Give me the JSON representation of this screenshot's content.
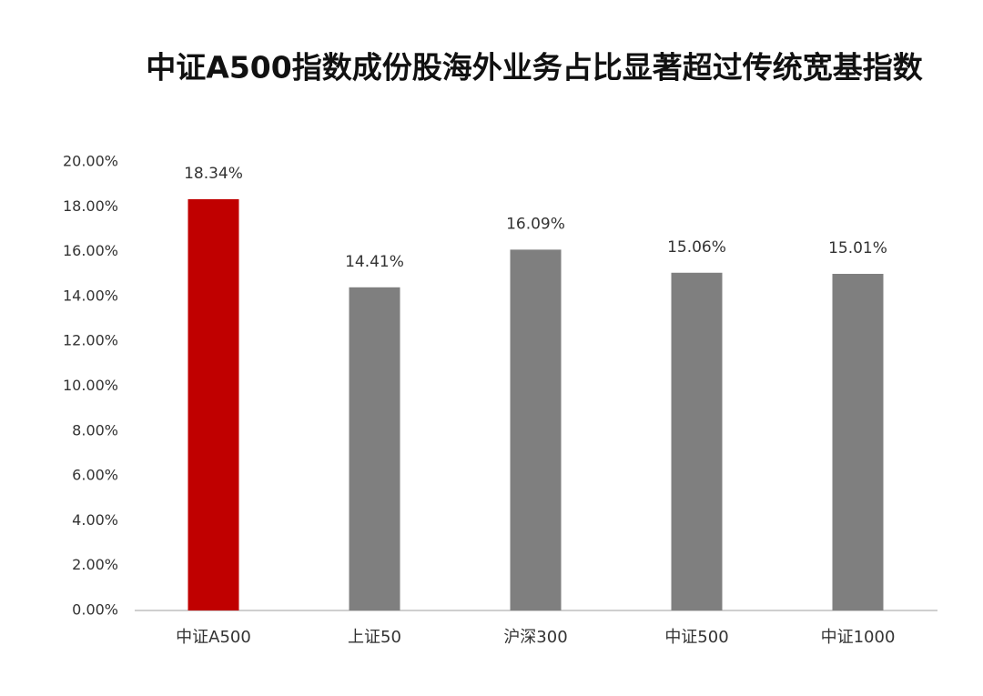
{
  "chart_data": {
    "type": "bar",
    "title": "中证A500指数成份股海外业务占比显著超过传统宽基指数",
    "categories": [
      "中证A500",
      "上证50",
      "沪深300",
      "中证500",
      "中证1000"
    ],
    "values": [
      18.34,
      14.41,
      16.09,
      15.06,
      15.01
    ],
    "value_labels": [
      "18.34%",
      "14.41%",
      "16.09%",
      "15.06%",
      "15.01%"
    ],
    "colors": [
      "#c00000",
      "#7f7f7f",
      "#7f7f7f",
      "#7f7f7f",
      "#7f7f7f"
    ],
    "ylim": [
      0,
      20
    ],
    "yticks": [
      {
        "value": 0,
        "label": "0.00%"
      },
      {
        "value": 2,
        "label": "2.00%"
      },
      {
        "value": 4,
        "label": "4.00%"
      },
      {
        "value": 6,
        "label": "6.00%"
      },
      {
        "value": 8,
        "label": "8.00%"
      },
      {
        "value": 10,
        "label": "10.00%"
      },
      {
        "value": 12,
        "label": "12.00%"
      },
      {
        "value": 14,
        "label": "14.00%"
      },
      {
        "value": 16,
        "label": "16.00%"
      },
      {
        "value": 18,
        "label": "18.00%"
      },
      {
        "value": 20,
        "label": "20.00%"
      }
    ],
    "grid": false
  }
}
